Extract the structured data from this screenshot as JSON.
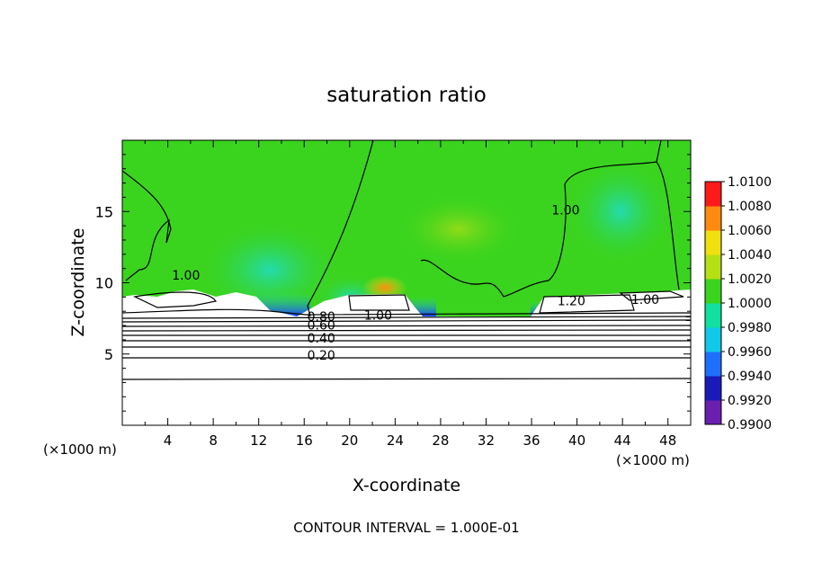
{
  "chart_data": {
    "type": "heatmap",
    "title": "saturation ratio",
    "xlabel": "X-coordinate",
    "ylabel": "Z-coordinate",
    "x_unit_left": "(×1000 m)",
    "x_unit_right": "(×1000 m)",
    "xlim": [
      0,
      50
    ],
    "ylim": [
      0,
      20
    ],
    "x_ticks": [
      4,
      8,
      12,
      16,
      20,
      24,
      28,
      32,
      36,
      40,
      44,
      48
    ],
    "y_ticks": [
      5,
      10,
      15
    ],
    "colorbar": {
      "levels": [
        0.99,
        0.992,
        0.994,
        0.996,
        0.998,
        1.0,
        1.002,
        1.004,
        1.006,
        1.008,
        1.01
      ],
      "labels": [
        "0.9900",
        "0.9920",
        "0.9940",
        "0.9960",
        "0.9980",
        "1.0000",
        "1.0020",
        "1.0040",
        "1.0060",
        "1.0080",
        "1.0100"
      ],
      "colors": [
        "#6a1fb0",
        "#1a1ab8",
        "#1f6fff",
        "#10c8e8",
        "#10e0a0",
        "#3ad41e",
        "#b4e014",
        "#f0e010",
        "#ff8a10",
        "#ff1a1a",
        "#f2a0a0"
      ]
    },
    "contour_labels": [
      {
        "text": "1.00",
        "x": 5.6,
        "z": 10.4
      },
      {
        "text": "1.00",
        "x": 39.0,
        "z": 15.0
      },
      {
        "text": "1.00",
        "x": 22.5,
        "z": 7.6
      },
      {
        "text": "1.20",
        "x": 39.5,
        "z": 8.6
      },
      {
        "text": "1.00",
        "x": 46.0,
        "z": 8.7
      },
      {
        "text": "0.80",
        "x": 17.5,
        "z": 7.5
      },
      {
        "text": "0.60",
        "x": 17.5,
        "z": 6.9
      },
      {
        "text": "0.40",
        "x": 17.5,
        "z": 6.0
      },
      {
        "text": "0.20",
        "x": 17.5,
        "z": 4.8
      }
    ],
    "footer": "CONTOUR INTERVAL = 1.000E-01"
  }
}
